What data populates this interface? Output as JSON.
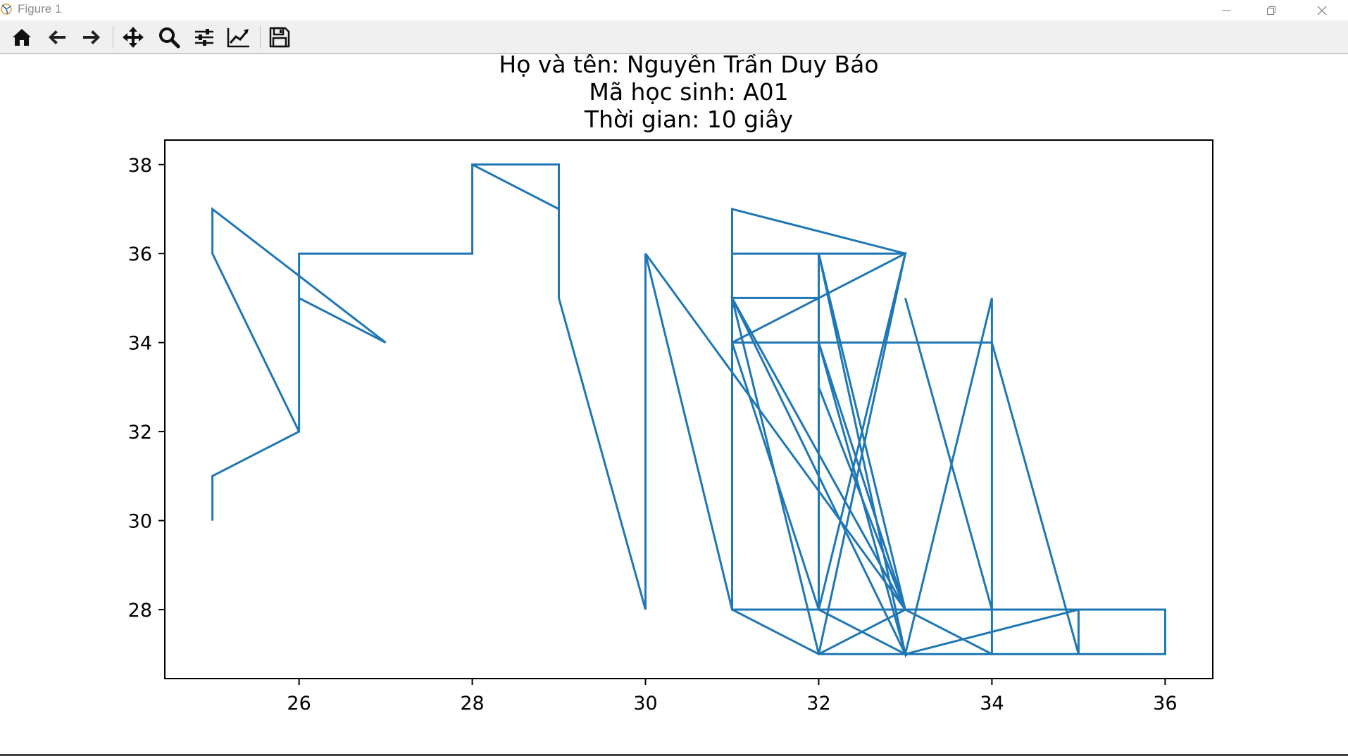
{
  "window": {
    "title": "Figure 1"
  },
  "toolbar": {
    "buttons": [
      {
        "name": "home-icon"
      },
      {
        "name": "back-arrow-icon"
      },
      {
        "name": "forward-arrow-icon"
      },
      {
        "name": "pan-move-icon"
      },
      {
        "name": "zoom-magnifier-icon"
      },
      {
        "name": "configure-subplots-icon"
      },
      {
        "name": "edit-axis-icon"
      },
      {
        "name": "save-floppy-icon"
      }
    ]
  },
  "chart_data": {
    "type": "line",
    "title_lines": [
      "Họ và tên: Nguyễn Trần Duy Báo",
      "Mã học sinh: A01",
      "Thời gian: 10 giây"
    ],
    "xlabel": "",
    "ylabel": "",
    "xlim": [
      24.45,
      36.55
    ],
    "ylim": [
      26.45,
      38.55
    ],
    "xticks": [
      26,
      28,
      30,
      32,
      34,
      36
    ],
    "yticks": [
      28,
      30,
      32,
      34,
      36,
      38
    ],
    "grid": false,
    "line_color": "#1f77b4",
    "series": [
      {
        "x": [
          25,
          25,
          26,
          26,
          26,
          27,
          25,
          25,
          26,
          26,
          28,
          28,
          29,
          29,
          28,
          29,
          29,
          30,
          30,
          31,
          30,
          33,
          32,
          31,
          31,
          32,
          33,
          31,
          32,
          31,
          31,
          32,
          33,
          32,
          33,
          32,
          34,
          33,
          34,
          34,
          34,
          33,
          32,
          31,
          33,
          32,
          35,
          36,
          36,
          34,
          34,
          33,
          32,
          34,
          35,
          35,
          33,
          34,
          32,
          31,
          31,
          33,
          32,
          33,
          34,
          32,
          33,
          33,
          32,
          33,
          35,
          33,
          32,
          32,
          32,
          33,
          34,
          32,
          33,
          32,
          31,
          33,
          32,
          33
        ],
        "y": [
          30,
          31,
          32,
          36,
          35,
          34,
          37,
          36,
          32,
          36,
          36,
          38,
          38,
          37,
          38,
          38,
          35,
          28,
          36,
          28,
          36,
          28,
          27,
          28,
          34,
          28,
          27,
          35,
          35,
          35,
          36,
          36,
          36,
          27,
          27,
          28,
          28,
          35,
          28,
          27,
          34,
          34,
          34,
          34,
          36,
          28,
          28,
          28,
          27,
          27,
          35,
          27,
          34,
          34,
          27,
          28,
          28,
          28,
          28,
          28,
          37,
          36,
          36,
          28,
          27,
          27,
          28,
          28,
          34,
          28,
          28,
          27,
          36,
          28,
          33,
          28,
          28,
          28,
          28,
          27,
          35,
          28,
          27,
          28
        ]
      }
    ]
  }
}
